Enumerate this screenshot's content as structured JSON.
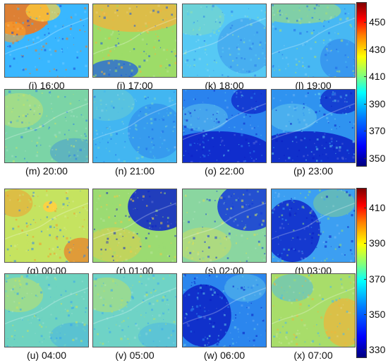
{
  "section1": {
    "panels": [
      {
        "label": "(i) 16:00",
        "base": "#39b7ff",
        "accent": "#f07a1e",
        "dark": "#1a47d6",
        "pattern": "hot-top-left"
      },
      {
        "label": "(j) 17:00",
        "base": "#9ddc68",
        "accent": "#f2b33d",
        "dark": "#1757e6",
        "pattern": "warm-top"
      },
      {
        "label": "(k) 18:00",
        "base": "#56c9f4",
        "accent": "#8fe0b0",
        "dark": "#2a7ce9",
        "pattern": "cool"
      },
      {
        "label": "(l) 19:00",
        "base": "#47b8f3",
        "accent": "#a6de74",
        "dark": "#226ae8",
        "pattern": "cool-warm-top"
      },
      {
        "label": "(m) 20:00",
        "base": "#7bd4a6",
        "accent": "#c7e46b",
        "dark": "#2a7ce9",
        "pattern": "mixed"
      },
      {
        "label": "(n) 21:00",
        "base": "#42b6f1",
        "accent": "#78d4c7",
        "dark": "#1f6be8",
        "pattern": "cool"
      },
      {
        "label": "(o) 22:00",
        "base": "#2a83ee",
        "accent": "#5fc8ec",
        "dark": "#0c1fc7",
        "pattern": "cold-bottom"
      },
      {
        "label": "(p) 23:00",
        "base": "#2f93f0",
        "accent": "#66ccec",
        "dark": "#0a1ec4",
        "pattern": "cold-bottom"
      }
    ],
    "colorbar": {
      "ticks": [
        "450",
        "430",
        "410",
        "390",
        "370",
        "350"
      ]
    }
  },
  "section2": {
    "panels": [
      {
        "label": "(q) 00:00",
        "base": "#c5e360",
        "accent": "#f39a2a",
        "dark": "#2a85ef",
        "pattern": "warm"
      },
      {
        "label": "(r) 01:00",
        "base": "#9bdb72",
        "accent": "#eecb45",
        "dark": "#0c22c9",
        "pattern": "cold-top-right"
      },
      {
        "label": "(s) 02:00",
        "base": "#8ad6a0",
        "accent": "#d8e058",
        "dark": "#1238d8",
        "pattern": "cold-top-right"
      },
      {
        "label": "(t) 03:00",
        "base": "#3c9ff2",
        "accent": "#8fd87c",
        "dark": "#0b1fc5",
        "pattern": "cold-left"
      },
      {
        "label": "(u) 04:00",
        "base": "#6fd3c0",
        "accent": "#c8e35e",
        "dark": "#35a4f1",
        "pattern": "mixed"
      },
      {
        "label": "(v) 05:00",
        "base": "#6fd3c6",
        "accent": "#bfe262",
        "dark": "#3aaaf1",
        "pattern": "mixed"
      },
      {
        "label": "(w) 06:00",
        "base": "#2b86ee",
        "accent": "#67cbe6",
        "dark": "#0a1cc2",
        "pattern": "cold-left"
      },
      {
        "label": "(x) 07:00",
        "base": "#a8dd6a",
        "accent": "#f0b43a",
        "dark": "#45b6f2",
        "pattern": "warm-right"
      }
    ],
    "colorbar": {
      "ticks": [
        "410",
        "390",
        "370",
        "350",
        "330"
      ]
    }
  }
}
